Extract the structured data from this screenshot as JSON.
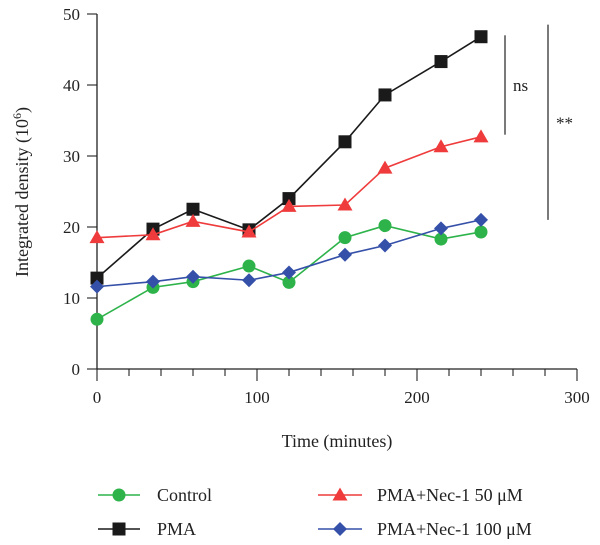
{
  "chart_data": {
    "type": "line",
    "xlabel": "Time (minutes)",
    "ylabel_main": "Integrated density (10",
    "ylabel_sup": "6",
    "ylabel_end": ")",
    "xlim": [
      0,
      300
    ],
    "ylim": [
      0,
      50
    ],
    "x_ticks": [
      0,
      100,
      200,
      300
    ],
    "y_ticks": [
      0,
      10,
      20,
      30,
      40,
      50
    ],
    "x_minor_step": 20,
    "grid": false,
    "legend_position": "bottom",
    "x": [
      0,
      35,
      60,
      95,
      120,
      155,
      180,
      215,
      240
    ],
    "series": [
      {
        "name": "Control",
        "color": "#2db34a",
        "marker": "circle",
        "values": [
          7.0,
          11.5,
          12.3,
          14.5,
          12.2,
          18.5,
          20.2,
          18.3,
          19.3
        ]
      },
      {
        "name": "PMA",
        "color": "#1a1a1a",
        "marker": "square",
        "values": [
          12.8,
          19.7,
          22.5,
          19.6,
          24.0,
          32.0,
          38.6,
          43.3,
          46.8
        ]
      },
      {
        "name": "PMA+Nec-1 50 μM",
        "color": "#ef3b3b",
        "marker": "triangle",
        "values": [
          18.5,
          18.9,
          20.8,
          19.3,
          22.9,
          23.1,
          28.3,
          31.3,
          32.7
        ]
      },
      {
        "name": "PMA+Nec-1 100 μM",
        "color": "#3550a8",
        "marker": "diamond",
        "values": [
          11.6,
          12.3,
          13.0,
          12.5,
          13.6,
          16.1,
          17.4,
          19.8,
          21.0
        ]
      }
    ],
    "annotations": [
      {
        "text": "ns",
        "y_range": [
          33,
          47
        ]
      },
      {
        "text": "**",
        "y_range": [
          21,
          48.5
        ]
      }
    ]
  }
}
